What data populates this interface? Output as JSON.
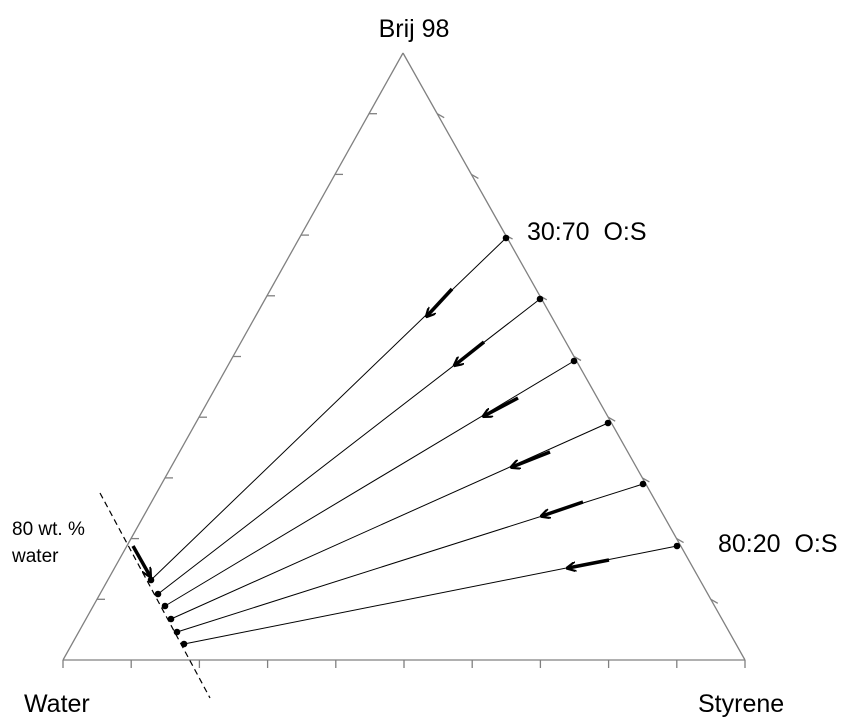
{
  "diagram": {
    "type": "ternary-phase-diagram",
    "vertices": {
      "top": "Brij 98",
      "bottom_left": "Water",
      "bottom_right": "Styrene"
    },
    "ratio_labels": {
      "upper": "30:70  O:S",
      "lower": "80:20  O:S"
    },
    "annotation": {
      "line1": "80 wt. %",
      "line2": "water"
    },
    "ticks_per_side": 10,
    "dilution_lines_count": 6,
    "colors": {
      "axes": "#808080",
      "lines": "#000000"
    }
  }
}
